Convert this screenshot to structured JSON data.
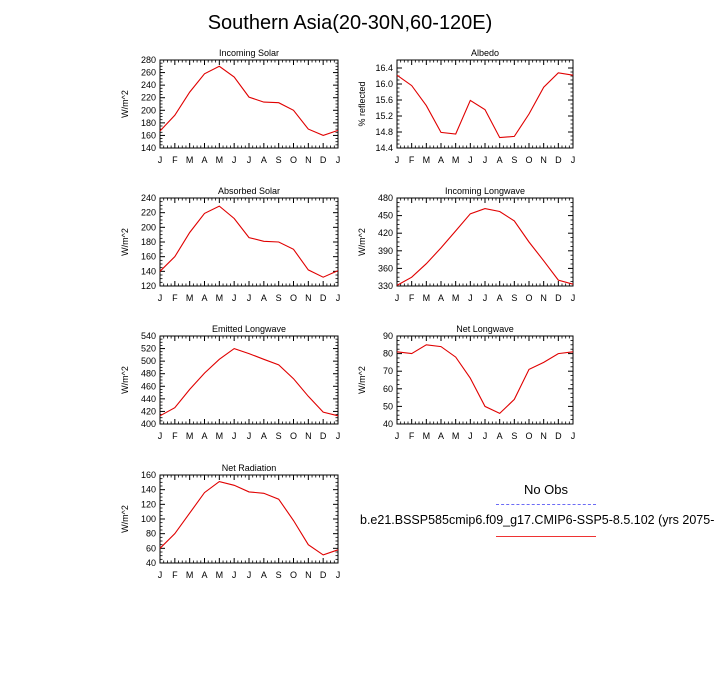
{
  "title": "Southern Asia(20-30N,60-120E)",
  "legend": {
    "obs_label": "No Obs",
    "model_label": "b.e21.BSSP585cmip6.f09_g17.CMIP6-SSP5-8.5.102 (yrs 2075-"
  },
  "colors": {
    "model": "#e00000",
    "obs": "#6b6bf5"
  },
  "chart_data": [
    {
      "type": "line",
      "title": "Incoming Solar",
      "ylabel": "W/m^2",
      "categories": [
        "J",
        "F",
        "M",
        "A",
        "M",
        "J",
        "J",
        "A",
        "S",
        "O",
        "N",
        "D",
        "J"
      ],
      "ylim": [
        140,
        280
      ],
      "yticks": [
        140,
        160,
        180,
        200,
        220,
        240,
        260,
        280
      ],
      "series": [
        {
          "values": [
            167,
            192,
            229,
            258,
            270,
            253,
            221,
            213,
            212,
            200,
            170,
            160,
            168
          ]
        }
      ]
    },
    {
      "type": "line",
      "title": "Albedo",
      "ylabel": "% reflected",
      "categories": [
        "J",
        "F",
        "M",
        "A",
        "M",
        "J",
        "J",
        "A",
        "S",
        "O",
        "N",
        "D",
        "J"
      ],
      "ylim": [
        14.4,
        16.6
      ],
      "yticks": [
        14.4,
        14.8,
        15.2,
        15.6,
        16.0,
        16.4
      ],
      "series": [
        {
          "values": [
            16.22,
            15.96,
            15.46,
            14.79,
            14.75,
            15.59,
            15.36,
            14.66,
            14.69,
            15.25,
            15.92,
            16.28,
            16.22
          ]
        }
      ]
    },
    {
      "type": "line",
      "title": "Absorbed Solar",
      "ylabel": "W/m^2",
      "categories": [
        "J",
        "F",
        "M",
        "A",
        "M",
        "J",
        "J",
        "A",
        "S",
        "O",
        "N",
        "D",
        "J"
      ],
      "ylim": [
        120,
        240
      ],
      "yticks": [
        120,
        140,
        160,
        180,
        200,
        220,
        240
      ],
      "series": [
        {
          "values": [
            140,
            160,
            193,
            219,
            229,
            212,
            186,
            181,
            180,
            170,
            142,
            132,
            141
          ]
        }
      ]
    },
    {
      "type": "line",
      "title": "Incoming Longwave",
      "ylabel": "W/m^2",
      "categories": [
        "J",
        "F",
        "M",
        "A",
        "M",
        "J",
        "J",
        "A",
        "S",
        "O",
        "N",
        "D",
        "J"
      ],
      "ylim": [
        330,
        480
      ],
      "yticks": [
        330,
        360,
        390,
        420,
        450,
        480
      ],
      "series": [
        {
          "values": [
            331,
            345,
            368,
            395,
            424,
            453,
            462,
            457,
            441,
            405,
            373,
            340,
            333
          ]
        }
      ]
    },
    {
      "type": "line",
      "title": "Emitted Longwave",
      "ylabel": "W/m^2",
      "categories": [
        "J",
        "F",
        "M",
        "A",
        "M",
        "J",
        "J",
        "A",
        "S",
        "O",
        "N",
        "D",
        "J"
      ],
      "ylim": [
        400,
        540
      ],
      "yticks": [
        400,
        420,
        440,
        460,
        480,
        500,
        520,
        540
      ],
      "series": [
        {
          "values": [
            413,
            426,
            455,
            481,
            503,
            520,
            512,
            503,
            494,
            472,
            444,
            419,
            413
          ]
        }
      ]
    },
    {
      "type": "line",
      "title": "Net Longwave",
      "ylabel": "W/m^2",
      "categories": [
        "J",
        "F",
        "M",
        "A",
        "M",
        "J",
        "J",
        "A",
        "S",
        "O",
        "N",
        "D",
        "J"
      ],
      "ylim": [
        40,
        90
      ],
      "yticks": [
        40,
        50,
        60,
        70,
        80,
        90
      ],
      "series": [
        {
          "values": [
            81,
            80,
            85,
            84,
            78,
            66,
            50,
            46,
            54,
            71,
            75,
            80,
            81
          ]
        }
      ]
    },
    {
      "type": "line",
      "title": "Net Radiation",
      "ylabel": "W/m^2",
      "categories": [
        "J",
        "F",
        "M",
        "A",
        "M",
        "J",
        "J",
        "A",
        "S",
        "O",
        "N",
        "D",
        "J"
      ],
      "ylim": [
        40,
        160
      ],
      "yticks": [
        40,
        60,
        80,
        100,
        120,
        140,
        160
      ],
      "series": [
        {
          "values": [
            60,
            80,
            108,
            136,
            151,
            146,
            137,
            135,
            127,
            98,
            65,
            51,
            58
          ]
        }
      ]
    }
  ]
}
